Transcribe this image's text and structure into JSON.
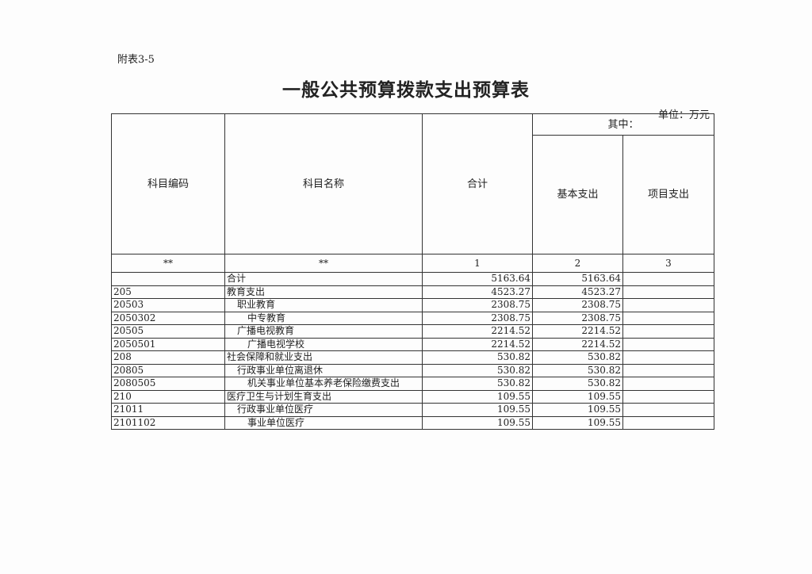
{
  "doc_label": "附表3-5",
  "title": "一般公共预算拨款支出预算表",
  "unit": "单位：万元",
  "headers": {
    "code": "科目编码",
    "name": "科目名称",
    "total": "合计",
    "of_which": "其中：",
    "basic": "基本支出",
    "project": "项目支出"
  },
  "index_row": [
    "**",
    "**",
    "1",
    "2",
    "3"
  ],
  "rows": [
    {
      "code": "",
      "name": "合计",
      "indent": 0,
      "total": "5163.64",
      "basic": "5163.64",
      "project": ""
    },
    {
      "code": "205",
      "name": "教育支出",
      "indent": 0,
      "total": "4523.27",
      "basic": "4523.27",
      "project": ""
    },
    {
      "code": "20503",
      "name": "职业教育",
      "indent": 1,
      "total": "2308.75",
      "basic": "2308.75",
      "project": ""
    },
    {
      "code": "2050302",
      "name": "中专教育",
      "indent": 2,
      "total": "2308.75",
      "basic": "2308.75",
      "project": ""
    },
    {
      "code": "20505",
      "name": "广播电视教育",
      "indent": 1,
      "total": "2214.52",
      "basic": "2214.52",
      "project": ""
    },
    {
      "code": "2050501",
      "name": "广播电视学校",
      "indent": 2,
      "total": "2214.52",
      "basic": "2214.52",
      "project": ""
    },
    {
      "code": "208",
      "name": "社会保障和就业支出",
      "indent": 0,
      "total": "530.82",
      "basic": "530.82",
      "project": ""
    },
    {
      "code": "20805",
      "name": "行政事业单位离退休",
      "indent": 1,
      "total": "530.82",
      "basic": "530.82",
      "project": ""
    },
    {
      "code": "2080505",
      "name": "机关事业单位基本养老保险缴费支出",
      "indent": 2,
      "total": "530.82",
      "basic": "530.82",
      "project": ""
    },
    {
      "code": "210",
      "name": "医疗卫生与计划生育支出",
      "indent": 0,
      "total": "109.55",
      "basic": "109.55",
      "project": ""
    },
    {
      "code": "21011",
      "name": "行政事业单位医疗",
      "indent": 1,
      "total": "109.55",
      "basic": "109.55",
      "project": ""
    },
    {
      "code": "2101102",
      "name": "事业单位医疗",
      "indent": 2,
      "total": "109.55",
      "basic": "109.55",
      "project": ""
    }
  ]
}
